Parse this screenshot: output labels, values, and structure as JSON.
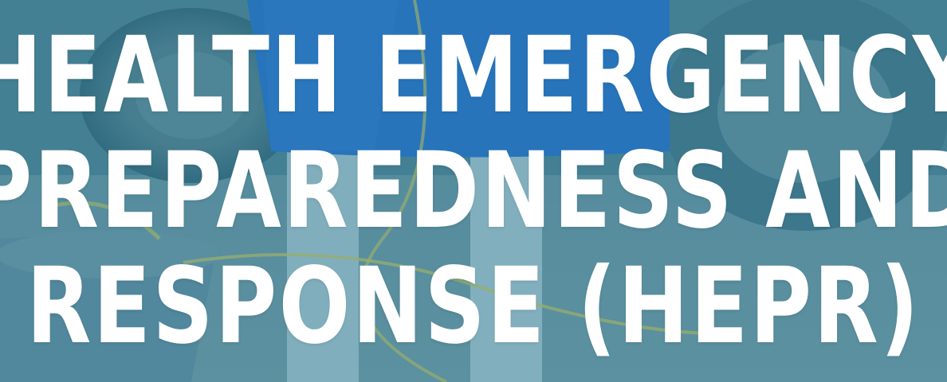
{
  "title": {
    "lines": [
      "HEALTH EMERGENCY",
      "PREPAREDNESS AND",
      "RESPONSE (HEPR)"
    ]
  },
  "colors": {
    "overlay": "#3a7d95",
    "text": "#ffffff",
    "apron": "#1f6fcf",
    "rope": "#c9c85a"
  }
}
